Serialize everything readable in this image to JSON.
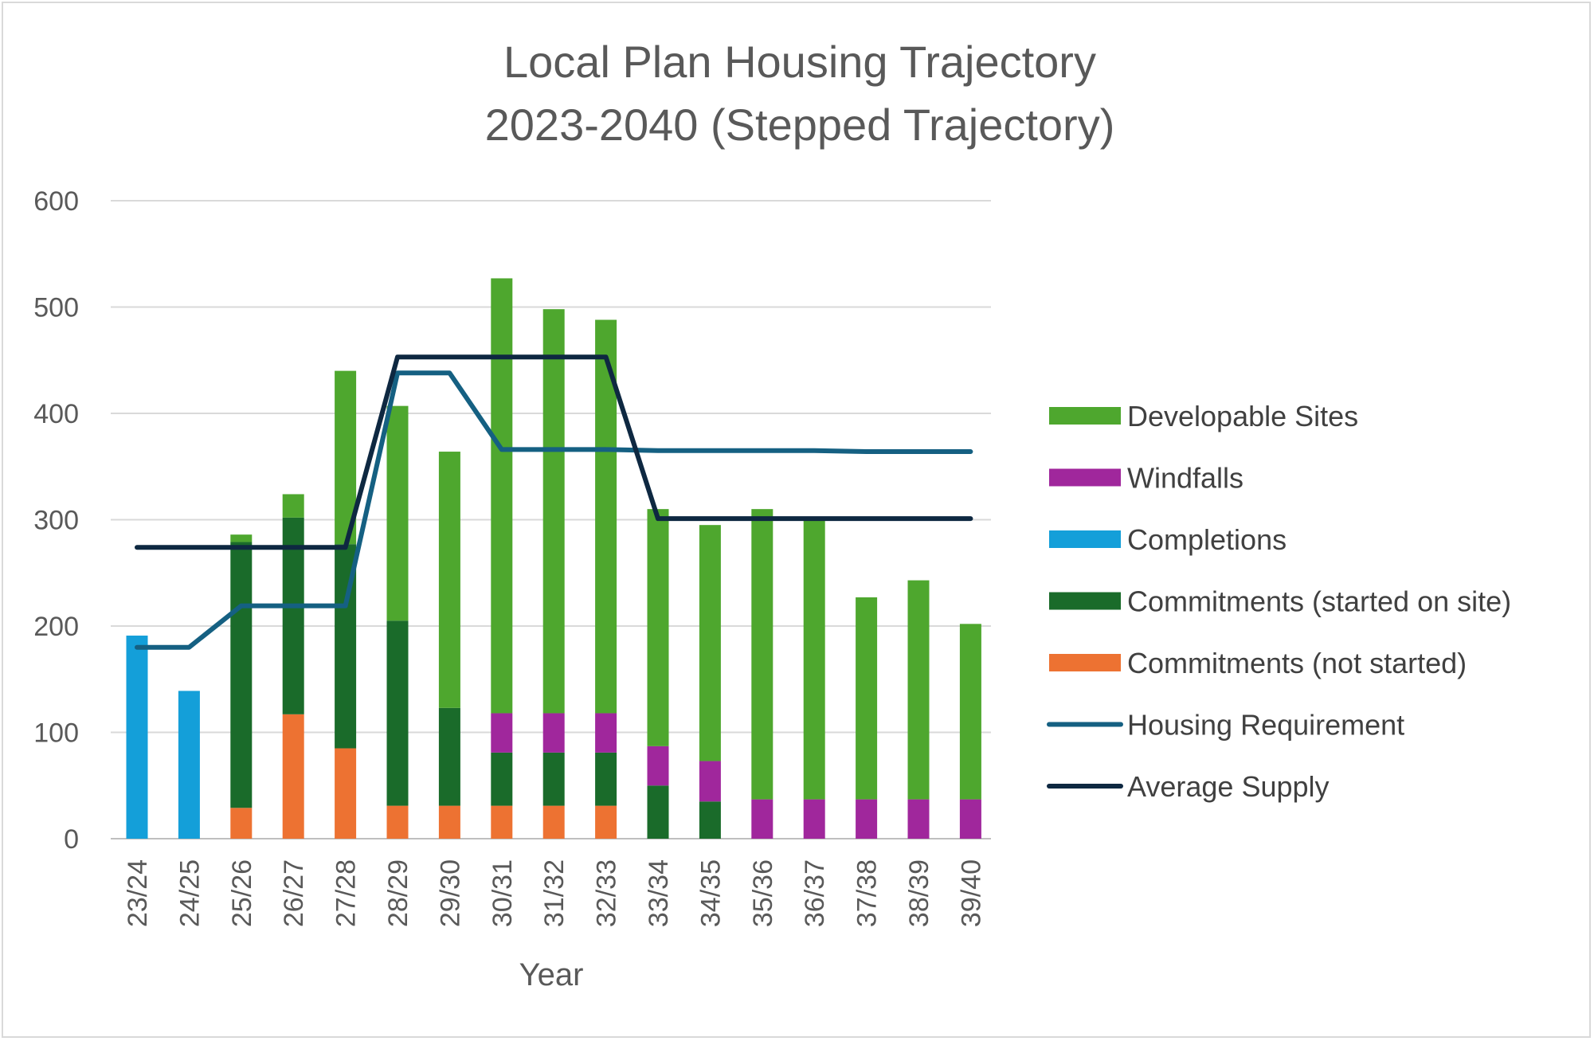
{
  "chart_data": {
    "type": "bar",
    "stacked": true,
    "title": "Local Plan Housing Trajectory",
    "subtitle": "2023-2040  (Stepped Trajectory)",
    "xlabel": "Year",
    "ylabel": "",
    "ylim": [
      0,
      600
    ],
    "yticks": [
      0,
      100,
      200,
      300,
      400,
      500,
      600
    ],
    "grid": true,
    "legend_position": "right",
    "categories": [
      "23/24",
      "24/25",
      "25/26",
      "26/27",
      "27/28",
      "28/29",
      "29/30",
      "30/31",
      "31/32",
      "32/33",
      "33/34",
      "34/35",
      "35/36",
      "36/37",
      "37/38",
      "38/39",
      "39/40"
    ],
    "series": [
      {
        "name": "Commitments (not started)",
        "kind": "bar",
        "color": "#ed7232",
        "values": [
          0,
          0,
          29,
          117,
          85,
          31,
          31,
          31,
          31,
          31,
          0,
          0,
          0,
          0,
          0,
          0,
          0
        ]
      },
      {
        "name": "Commitments (started on site)",
        "kind": "bar",
        "color": "#1a6b2a",
        "values": [
          0,
          0,
          250,
          185,
          192,
          174,
          92,
          50,
          50,
          50,
          50,
          35,
          0,
          0,
          0,
          0,
          0
        ]
      },
      {
        "name": "Completions",
        "kind": "bar",
        "color": "#149fd9",
        "values": [
          191,
          139,
          0,
          0,
          0,
          0,
          0,
          0,
          0,
          0,
          0,
          0,
          0,
          0,
          0,
          0,
          0
        ]
      },
      {
        "name": "Windfalls",
        "kind": "bar",
        "color": "#a0279c",
        "values": [
          0,
          0,
          0,
          0,
          0,
          0,
          0,
          37,
          37,
          37,
          37,
          38,
          37,
          37,
          37,
          37,
          37
        ]
      },
      {
        "name": "Developable Sites",
        "kind": "bar",
        "color": "#4ea72e",
        "values": [
          0,
          0,
          7,
          22,
          163,
          202,
          241,
          409,
          380,
          370,
          223,
          222,
          273,
          263,
          190,
          206,
          165
        ]
      },
      {
        "name": "Housing Requirement",
        "kind": "line",
        "color": "#156082",
        "values": [
          180,
          180,
          219,
          219,
          219,
          438,
          438,
          366,
          366,
          366,
          365,
          365,
          365,
          365,
          364,
          364,
          364
        ]
      },
      {
        "name": "Average Supply",
        "kind": "line",
        "color": "#0e2841",
        "values": [
          274,
          274,
          274,
          274,
          274,
          453,
          453,
          453,
          453,
          453,
          301,
          301,
          301,
          301,
          301,
          301,
          301
        ]
      }
    ],
    "legend_order": [
      "Developable Sites",
      "Windfalls",
      "Completions",
      "Commitments (started on site)",
      "Commitments (not started)",
      "Housing Requirement",
      "Average Supply"
    ]
  }
}
